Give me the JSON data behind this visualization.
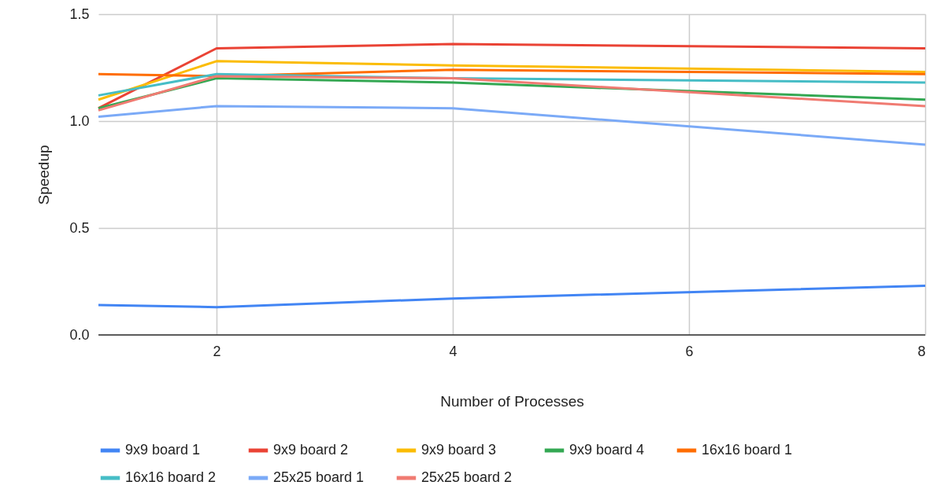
{
  "chart_data": {
    "type": "line",
    "xlabel": "Number of Processes",
    "ylabel": "Speedup",
    "x": [
      1,
      2,
      4,
      8
    ],
    "series": [
      {
        "name": "9x9 board 1",
        "color": "#4285f4",
        "values": [
          0.14,
          0.13,
          0.17,
          0.23
        ]
      },
      {
        "name": "9x9 board 2",
        "color": "#ea4335",
        "values": [
          1.06,
          1.34,
          1.36,
          1.34
        ]
      },
      {
        "name": "9x9 board 3",
        "color": "#fbbc04",
        "values": [
          1.1,
          1.28,
          1.26,
          1.23
        ]
      },
      {
        "name": "9x9 board 4",
        "color": "#34a853",
        "values": [
          1.06,
          1.2,
          1.18,
          1.1
        ]
      },
      {
        "name": "16x16 board 1",
        "color": "#ff6d01",
        "values": [
          1.22,
          1.21,
          1.24,
          1.22
        ]
      },
      {
        "name": "16x16 board 2",
        "color": "#46bdc6",
        "values": [
          1.12,
          1.22,
          1.2,
          1.18
        ]
      },
      {
        "name": "25x25 board 1",
        "color": "#7baaf7",
        "values": [
          1.02,
          1.07,
          1.06,
          0.89
        ]
      },
      {
        "name": "25x25 board 2",
        "color": "#f07b72",
        "values": [
          1.05,
          1.21,
          1.2,
          1.07
        ]
      }
    ],
    "xlim": [
      1,
      8
    ],
    "xticks": [
      2,
      4,
      6,
      8
    ],
    "ylim": [
      0,
      1.5
    ],
    "yticks": [
      {
        "value": 0,
        "label": "0.0"
      },
      {
        "value": 0.5,
        "label": "0.5"
      },
      {
        "value": 1,
        "label": "1.0"
      },
      {
        "value": 1.5,
        "label": "1.5"
      }
    ],
    "grid": true,
    "legend": "bottom",
    "marker": "none",
    "line_style": "solid"
  }
}
